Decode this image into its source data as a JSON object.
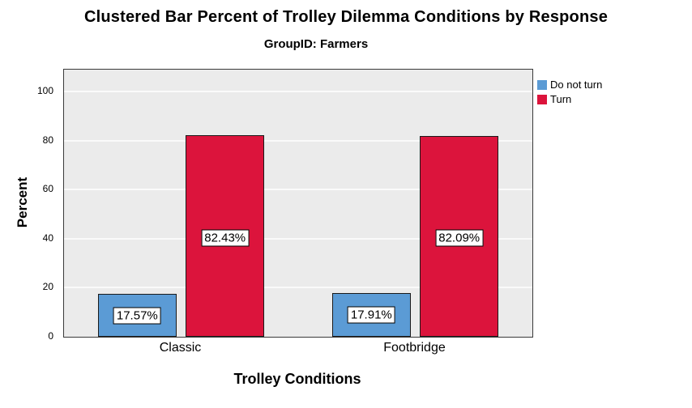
{
  "title": "Clustered Bar Percent of Trolley Dilemma Conditions by Response",
  "subtitle": "GroupID: Farmers",
  "chart_data": {
    "type": "bar",
    "title": "Clustered Bar Percent of Trolley Dilemma Conditions by Response",
    "subtitle": "GroupID: Farmers",
    "xlabel": "Trolley Conditions",
    "ylabel": "Percent",
    "categories": [
      "Classic",
      "Footbridge"
    ],
    "series": [
      {
        "name": "Do not turn",
        "color": "#5B9BD5",
        "values": [
          17.57,
          17.91
        ],
        "labels": [
          "17.57%",
          "17.91%"
        ]
      },
      {
        "name": "Turn",
        "color": "#DC143C",
        "values": [
          82.43,
          82.09
        ],
        "labels": [
          "82.43%",
          "82.09%"
        ]
      }
    ],
    "ylim": [
      0,
      100
    ],
    "yticks": [
      0,
      20,
      40,
      60,
      80,
      100
    ],
    "grid": true,
    "legend_position": "top-right",
    "plot_background": "#EBEBEB"
  }
}
